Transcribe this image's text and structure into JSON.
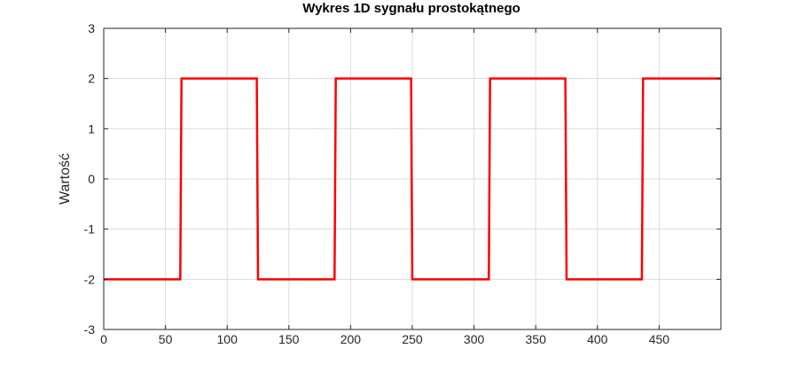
{
  "chart_data": {
    "type": "line",
    "title": "Wykres 1D sygnału prostokątnego",
    "xlabel": "",
    "ylabel": "Wartość",
    "xlim": [
      0,
      500
    ],
    "ylim": [
      -3,
      3
    ],
    "grid": true,
    "x_ticks": [
      0,
      50,
      100,
      150,
      200,
      250,
      300,
      350,
      400,
      450
    ],
    "y_ticks": [
      -3,
      -2,
      -1,
      0,
      1,
      2,
      3
    ],
    "series": [
      {
        "color": "#ff0000",
        "x": [
          0,
          62,
          63,
          124,
          125,
          187,
          188,
          249,
          250,
          312,
          313,
          374,
          375,
          436,
          437,
          500
        ],
        "y": [
          -2,
          -2,
          2,
          2,
          -2,
          -2,
          2,
          2,
          -2,
          -2,
          2,
          2,
          -2,
          -2,
          2,
          2
        ]
      }
    ]
  }
}
